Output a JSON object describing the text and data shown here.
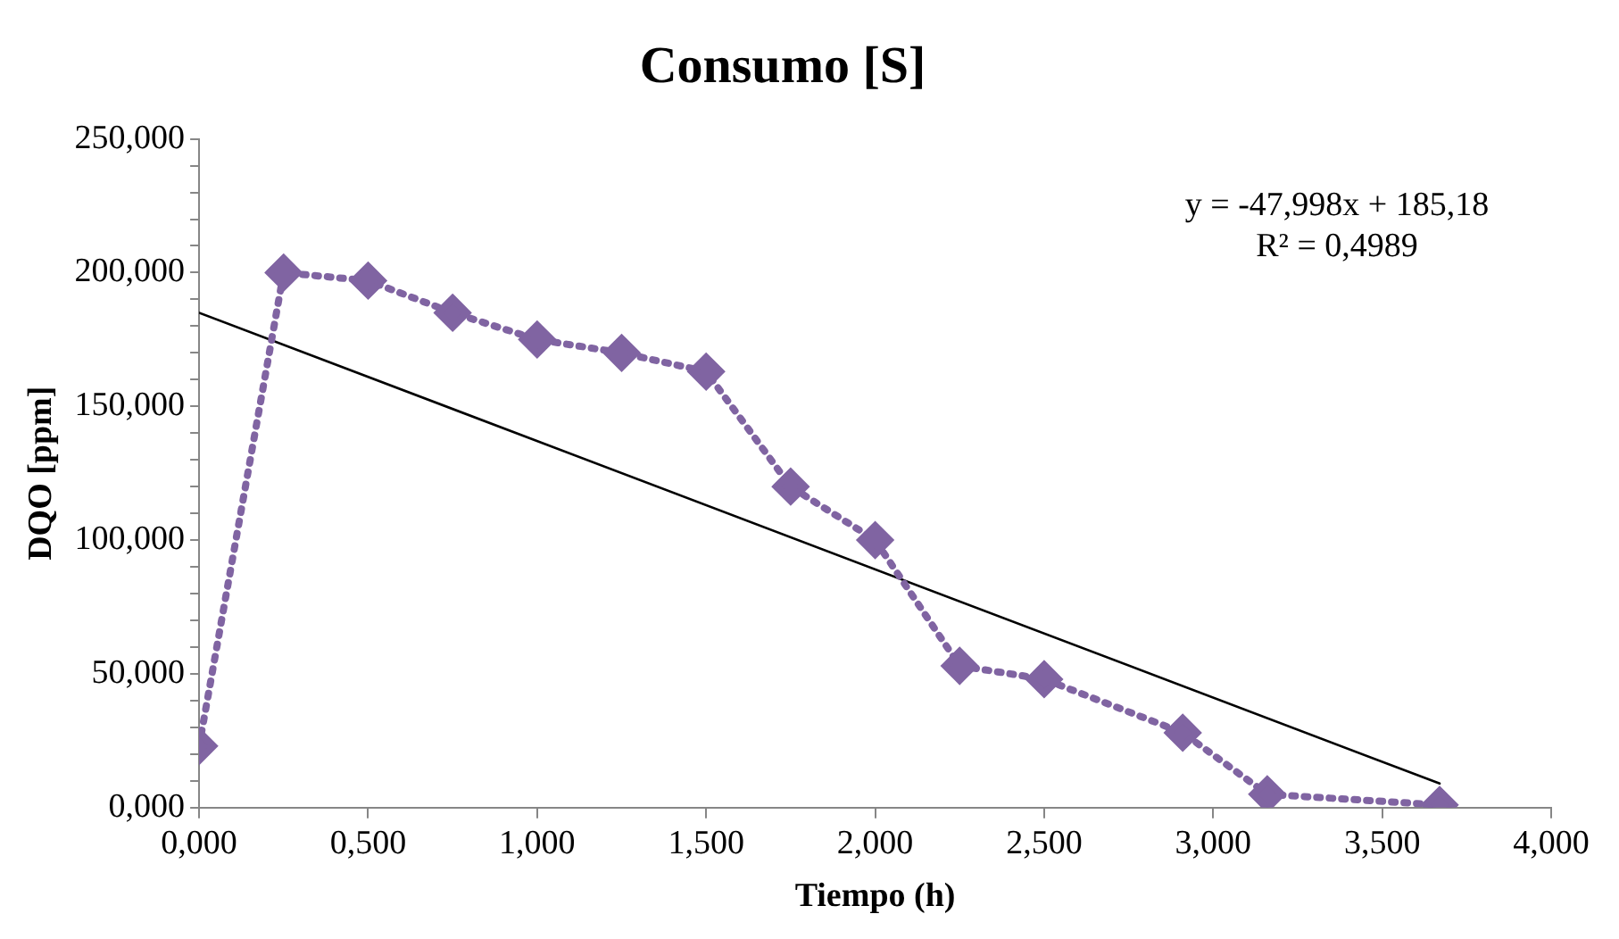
{
  "chart_data": {
    "type": "line",
    "title": "Consumo [S]",
    "xlabel": "Tiempo (h)",
    "ylabel": "DQO [ppm]",
    "series": [
      {
        "color": "#8064a2",
        "marker": "diamond",
        "line_style": "dotted",
        "x": [
          0,
          0.25,
          0.5,
          0.75,
          1.0,
          1.25,
          1.5,
          1.75,
          2.0,
          2.25,
          2.5,
          2.91,
          3.16,
          3.67
        ],
        "values": [
          23,
          200,
          197,
          185,
          175,
          170,
          163,
          120,
          100,
          53,
          48,
          28,
          5,
          1
        ]
      },
      {
        "type": "line",
        "color": "#000000",
        "marker": "none",
        "line_style": "solid",
        "x": [
          0,
          3.67
        ],
        "values": [
          185,
          9
        ]
      }
    ],
    "xlim": [
      0,
      4
    ],
    "xticks": [
      {
        "value": 0,
        "label": "0,000"
      },
      {
        "value": 0.5,
        "label": "0,500"
      },
      {
        "value": 1,
        "label": "1,000"
      },
      {
        "value": 1.5,
        "label": "1,500"
      },
      {
        "value": 2,
        "label": "2,000"
      },
      {
        "value": 2.5,
        "label": "2,500"
      },
      {
        "value": 3,
        "label": "3,000"
      },
      {
        "value": 3.5,
        "label": "3,500"
      },
      {
        "value": 4,
        "label": "4,000"
      }
    ],
    "ylim": [
      0,
      250
    ],
    "yticks": [
      {
        "value": 0,
        "label": "0,000"
      },
      {
        "value": 10,
        "label": null
      },
      {
        "value": 20,
        "label": null
      },
      {
        "value": 30,
        "label": null
      },
      {
        "value": 40,
        "label": null
      },
      {
        "value": 50,
        "label": "50,000"
      },
      {
        "value": 60,
        "label": null
      },
      {
        "value": 70,
        "label": null
      },
      {
        "value": 80,
        "label": null
      },
      {
        "value": 90,
        "label": null
      },
      {
        "value": 100,
        "label": "100,000"
      },
      {
        "value": 110,
        "label": null
      },
      {
        "value": 120,
        "label": null
      },
      {
        "value": 130,
        "label": null
      },
      {
        "value": 140,
        "label": null
      },
      {
        "value": 150,
        "label": "150,000"
      },
      {
        "value": 160,
        "label": null
      },
      {
        "value": 170,
        "label": null
      },
      {
        "value": 180,
        "label": null
      },
      {
        "value": 190,
        "label": null
      },
      {
        "value": 200,
        "label": "200,000"
      },
      {
        "value": 210,
        "label": null
      },
      {
        "value": 220,
        "label": null
      },
      {
        "value": 230,
        "label": null
      },
      {
        "value": 240,
        "label": null
      },
      {
        "value": 250,
        "label": "250,000"
      }
    ],
    "grid": false,
    "legend": false,
    "annotations": [
      "y = -47,998x + 185,18",
      "R² = 0,4989"
    ]
  }
}
